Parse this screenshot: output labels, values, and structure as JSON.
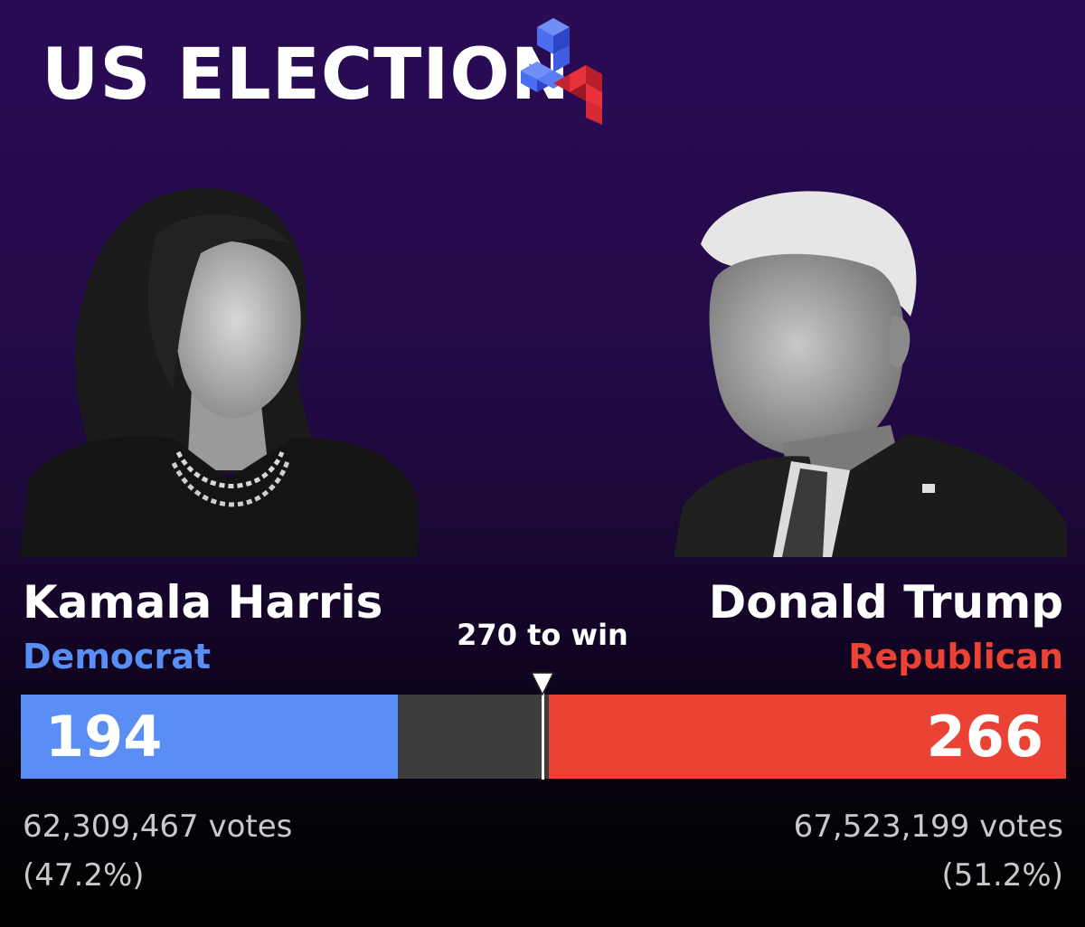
{
  "header": {
    "title": "US ELECTION",
    "logo_icon": "election-24-logo",
    "logo_colors": [
      "#4b6ef0",
      "#2f45c8",
      "#e8323b",
      "#b81e2a"
    ]
  },
  "threshold": {
    "label": "270 to win",
    "seats_to_win": 270
  },
  "total_electoral_votes": 538,
  "candidates": [
    {
      "side": "left",
      "name": "Kamala Harris",
      "party": "Democrat",
      "color": "#5b8ef5",
      "electoral_votes": "194",
      "electoral_votes_value": 194,
      "votes": "62,309,467 votes",
      "vote_share": "(47.2%)",
      "portrait_icon": "harris-portrait"
    },
    {
      "side": "right",
      "name": "Donald Trump",
      "party": "Republican",
      "color": "#ea4335",
      "electoral_votes": "266",
      "electoral_votes_value": 266,
      "votes": "67,523,199 votes",
      "vote_share": "(51.2%)",
      "portrait_icon": "trump-portrait"
    }
  ],
  "bar": {
    "undecided_color": "#3d3d3f"
  }
}
